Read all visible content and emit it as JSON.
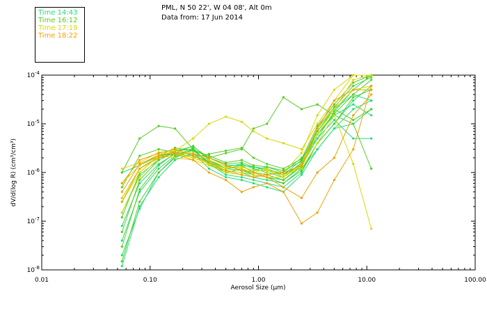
{
  "header": {
    "location": "PML, N 50 22', W 04 08', Alt 0m",
    "date_line": "Data from: 17 Jun 2014"
  },
  "legend": [
    {
      "label": "Time 14:43",
      "color": "#22dd77"
    },
    {
      "label": "Time 16:12",
      "color": "#55cc22"
    },
    {
      "label": "Time 17:19",
      "color": "#d8d800"
    },
    {
      "label": "Time 18:22",
      "color": "#f0a000"
    }
  ],
  "chart_data": {
    "type": "line",
    "xscale": "log",
    "yscale": "log",
    "xlabel": "Aerosol Size (µm)",
    "ylabel": "dV/d(log R) (cm³/cm³)",
    "xlim": [
      0.01,
      100
    ],
    "ylim": [
      1e-08,
      0.0001
    ],
    "xticks": [
      "0.01",
      "0.10",
      "1.00",
      "10.00",
      "100.00"
    ],
    "yticks": [
      {
        "base": "10",
        "exp": "-4"
      },
      {
        "base": "10",
        "exp": "-5"
      },
      {
        "base": "10",
        "exp": "-6"
      },
      {
        "base": "10",
        "exp": "-7"
      },
      {
        "base": "10",
        "exp": "-8"
      }
    ],
    "x": [
      0.055,
      0.08,
      0.12,
      0.17,
      0.25,
      0.35,
      0.5,
      0.7,
      0.9,
      1.2,
      1.7,
      2.5,
      3.5,
      5,
      7.5,
      11
    ],
    "series": [
      {
        "name": "s01",
        "color": "#22dd77",
        "values": [
          1.2e-08,
          2e-07,
          8e-07,
          1.8e-06,
          2.5e-06,
          1.2e-06,
          8e-07,
          7e-07,
          6e-07,
          5e-07,
          4e-07,
          9e-07,
          3e-06,
          8e-06,
          2e-05,
          3e-05
        ]
      },
      {
        "name": "s02",
        "color": "#22dd77",
        "values": [
          2e-08,
          1.8e-07,
          1e-06,
          2e-06,
          3e-06,
          1.5e-06,
          9e-07,
          8e-07,
          7e-07,
          6e-07,
          5e-07,
          1e-06,
          4e-06,
          1e-05,
          3e-05,
          6e-05
        ]
      },
      {
        "name": "s03",
        "color": "#22dd77",
        "values": [
          4e-08,
          4e-07,
          1.2e-06,
          2.2e-06,
          3.2e-06,
          1.4e-06,
          1.1e-06,
          1e-06,
          8e-07,
          7e-07,
          6e-07,
          1.2e-06,
          3e-06,
          8e-06,
          1e-05,
          2e-05
        ]
      },
      {
        "name": "s04",
        "color": "#22dd77",
        "values": [
          8e-08,
          6e-07,
          1.5e-06,
          2.4e-06,
          2.8e-06,
          1.6e-06,
          1.2e-06,
          1.1e-06,
          9e-07,
          8e-07,
          7e-07,
          1.4e-06,
          5e-06,
          1.2e-05,
          5e-06,
          5e-06
        ]
      },
      {
        "name": "s05",
        "color": "#22dd77",
        "values": [
          1.5e-07,
          9e-07,
          1.8e-06,
          2.6e-06,
          2.4e-06,
          1.8e-06,
          1.3e-06,
          1.5e-06,
          1.2e-06,
          1e-06,
          8e-07,
          1.6e-06,
          6e-06,
          1.5e-05,
          2.5e-05,
          1.5e-05
        ]
      },
      {
        "name": "s06",
        "color": "#22dd77",
        "values": [
          3e-07,
          1.2e-06,
          2e-06,
          2.8e-06,
          3.4e-06,
          2e-06,
          1.4e-06,
          1.4e-06,
          1.3e-06,
          1.2e-06,
          9e-07,
          1.8e-06,
          7e-06,
          2e-05,
          4e-05,
          3e-05
        ]
      },
      {
        "name": "s07",
        "color": "#22dd77",
        "values": [
          1e-06,
          1.4e-06,
          2.2e-06,
          2.4e-06,
          2.2e-06,
          1.7e-06,
          1.2e-06,
          1.3e-06,
          1.1e-06,
          1.3e-06,
          1e-06,
          2e-06,
          5e-06,
          1.8e-05,
          5e-05,
          0.0001
        ]
      },
      {
        "name": "s08",
        "color": "#55cc22",
        "values": [
          1.5e-08,
          2.5e-07,
          1e-06,
          2.1e-06,
          3e-06,
          1.6e-06,
          1e-06,
          1.2e-06,
          9e-07,
          8e-07,
          6e-07,
          1.1e-06,
          4e-06,
          1e-05,
          3.5e-05,
          5e-05
        ]
      },
      {
        "name": "s09",
        "color": "#55cc22",
        "values": [
          3e-08,
          4.5e-07,
          1.4e-06,
          2.5e-06,
          3.5e-06,
          1.8e-06,
          1.2e-06,
          1.4e-06,
          1e-06,
          9e-07,
          7e-07,
          1.3e-06,
          6e-06,
          1.6e-05,
          4e-05,
          8e-05
        ]
      },
      {
        "name": "s10",
        "color": "#55cc22",
        "values": [
          6e-08,
          7e-07,
          1.8e-06,
          2.8e-06,
          3e-06,
          2e-06,
          1.5e-06,
          1.6e-06,
          1.3e-06,
          1.1e-06,
          9e-07,
          1.5e-06,
          7e-06,
          2e-05,
          1.2e-05,
          2e-05
        ]
      },
      {
        "name": "s11",
        "color": "#55cc22",
        "values": [
          1.2e-07,
          1e-06,
          2.2e-06,
          3.2e-06,
          2.8e-06,
          2.2e-06,
          1.6e-06,
          1.8e-06,
          1.4e-06,
          1.3e-06,
          1.1e-06,
          1.7e-06,
          8e-06,
          2.2e-05,
          6e-05,
          9e-05
        ]
      },
      {
        "name": "s12",
        "color": "#55cc22",
        "values": [
          1e-06,
          5e-06,
          9e-06,
          8e-06,
          3e-06,
          2e-06,
          2.5e-06,
          3e-06,
          8e-06,
          1e-05,
          3.5e-05,
          2e-05,
          2.5e-05,
          1.5e-05,
          1e-05,
          1.2e-06
        ]
      },
      {
        "name": "s13",
        "color": "#55cc22",
        "values": [
          5e-07,
          2.2e-06,
          3e-06,
          2.6e-06,
          2e-06,
          2.4e-06,
          2.8e-06,
          3.2e-06,
          2e-06,
          1.5e-06,
          1.2e-06,
          1.9e-06,
          9e-06,
          2.5e-05,
          7e-05,
          0.0001
        ]
      },
      {
        "name": "s14",
        "color": "#d8d800",
        "values": [
          2.5e-07,
          1e-06,
          2.2e-06,
          2.8e-06,
          2.5e-06,
          1.8e-06,
          1.3e-06,
          1.2e-06,
          1e-06,
          1.2e-06,
          8e-07,
          1.4e-06,
          6e-06,
          2e-05,
          8e-05,
          0.0001
        ]
      },
      {
        "name": "s15",
        "color": "#d8d800",
        "values": [
          6e-07,
          1.4e-06,
          2.4e-06,
          2.6e-06,
          2e-06,
          1.6e-06,
          1.2e-06,
          1.3e-06,
          1.1e-06,
          1.1e-06,
          1e-06,
          2.5e-06,
          1.5e-05,
          5e-05,
          0.0001,
          0.0001
        ]
      },
      {
        "name": "s16",
        "color": "#d8d800",
        "values": [
          1.2e-06,
          1.6e-06,
          2.6e-06,
          2.8e-06,
          5e-06,
          1e-05,
          1.4e-05,
          1.1e-05,
          7e-06,
          5e-06,
          4e-06,
          3e-06,
          1e-05,
          3e-05,
          0.0001,
          0.0001
        ]
      },
      {
        "name": "s17",
        "color": "#d8d800",
        "values": [
          1.5e-07,
          8e-07,
          2e-06,
          2.4e-06,
          2e-06,
          1.5e-06,
          1.1e-06,
          1e-06,
          9e-07,
          8e-07,
          8e-07,
          1.5e-06,
          8e-06,
          2e-05,
          5e-05,
          6e-05
        ]
      },
      {
        "name": "s18",
        "color": "#d8d800",
        "values": [
          3e-07,
          1.2e-06,
          2.2e-06,
          2e-06,
          1.8e-06,
          1.4e-06,
          1e-06,
          9e-07,
          8e-07,
          1e-06,
          9e-07,
          1.2e-06,
          4e-06,
          1.5e-05,
          1.5e-06,
          7e-08
        ]
      },
      {
        "name": "s19",
        "color": "#f0a000",
        "values": [
          2.5e-07,
          1.2e-06,
          2e-06,
          2.4e-06,
          1.8e-06,
          1e-06,
          7e-07,
          4e-07,
          5e-07,
          6e-07,
          4e-07,
          9e-08,
          1.5e-07,
          7e-07,
          3e-06,
          6e-05
        ]
      },
      {
        "name": "s20",
        "color": "#f0a000",
        "values": [
          4e-07,
          1.5e-06,
          2.2e-06,
          2.6e-06,
          2.4e-06,
          2e-06,
          1.4e-06,
          1.1e-06,
          1e-06,
          8e-07,
          5e-07,
          3e-07,
          1e-06,
          2e-06,
          1.5e-05,
          4e-05
        ]
      },
      {
        "name": "s21",
        "color": "#f0a000",
        "values": [
          6e-07,
          1.8e-06,
          2.5e-06,
          3e-06,
          2.2e-06,
          1.6e-06,
          1.1e-06,
          9e-07,
          8e-07,
          9e-07,
          1e-06,
          1.4e-06,
          8e-06,
          3e-05,
          5e-05,
          5e-05
        ]
      }
    ]
  }
}
